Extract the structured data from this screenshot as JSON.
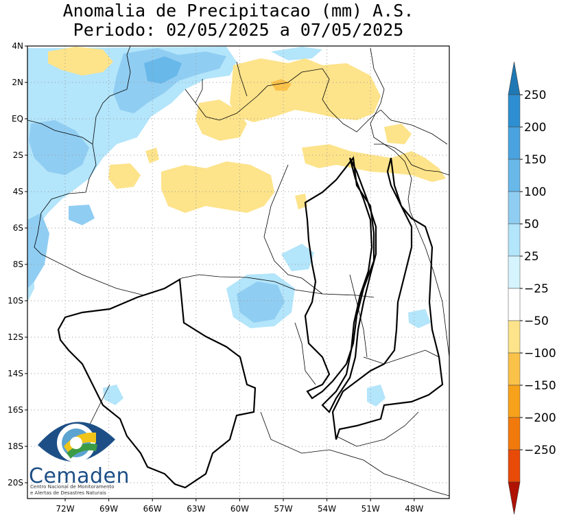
{
  "title": {
    "line1": "Anomalia de Precipitacao (mm) A.S.",
    "line2": "Periodo: 02/05/2025 a 07/05/2025"
  },
  "map": {
    "lat_ticks": [
      "4N",
      "2N",
      "EQ",
      "2S",
      "4S",
      "6S",
      "8S",
      "10S",
      "12S",
      "14S",
      "16S",
      "18S",
      "20S"
    ],
    "lon_ticks": [
      "72W",
      "69W",
      "66W",
      "63W",
      "60W",
      "57W",
      "54W",
      "51W",
      "48W"
    ],
    "grid": "dotted",
    "lon_range": [
      -74,
      -46
    ],
    "lat_range": [
      -21,
      4
    ]
  },
  "colorbar": {
    "labels": [
      "250",
      "200",
      "150",
      "100",
      "50",
      "25",
      "−25",
      "−50",
      "−100",
      "−150",
      "−200",
      "−250"
    ],
    "colors": {
      "above_250": "#1f78b4",
      "b200_250": "#2d8fd1",
      "b150_200": "#4aa3e0",
      "b100_150": "#68b8ea",
      "b50_100": "#90cdf2",
      "b25_50": "#b3e5fb",
      "b0_25": "#d6f4fd",
      "neutral": "#ffffff",
      "n25_50": "#fde38a",
      "n50_100": "#fbc24a",
      "n100_150": "#f7a21a",
      "n150_200": "#f27a0c",
      "n200_250": "#e84a07",
      "below_250": "#c41a02",
      "below_arrow": "#b01202"
    }
  },
  "logo": {
    "name": "Cemaden",
    "subtitle1": "Centro Nacional de Monitoramento",
    "subtitle2": "e Alertas de Desastres Naturais"
  }
}
